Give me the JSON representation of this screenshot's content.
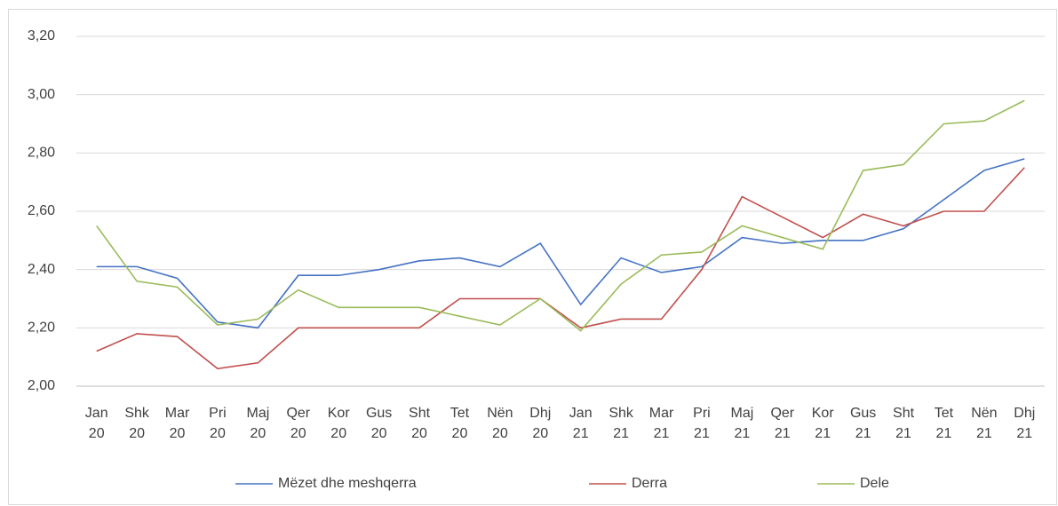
{
  "chart_data": {
    "type": "line",
    "categories": [
      "Jan 20",
      "Shk 20",
      "Mar 20",
      "Pri 20",
      "Maj 20",
      "Qer 20",
      "Kor 20",
      "Gus 20",
      "Sht 20",
      "Tet 20",
      "Nën 20",
      "Dhj 20",
      "Jan 21",
      "Shk 21",
      "Mar 21",
      "Pri 21",
      "Maj 21",
      "Qer 21",
      "Kor 21",
      "Gus 21",
      "Sht 21",
      "Tet 21",
      "Nën 21",
      "Dhj 21"
    ],
    "series": [
      {
        "name": "Mëzet dhe meshqerra",
        "color": "#4472c4",
        "values": [
          2.41,
          2.41,
          2.37,
          2.22,
          2.2,
          2.38,
          2.38,
          2.4,
          2.43,
          2.44,
          2.41,
          2.49,
          2.28,
          2.44,
          2.39,
          2.41,
          2.51,
          2.49,
          2.5,
          2.5,
          2.54,
          2.64,
          2.74,
          2.78
        ]
      },
      {
        "name": "Derra",
        "color": "#c0504d",
        "values": [
          2.12,
          2.18,
          2.17,
          2.06,
          2.08,
          2.2,
          2.2,
          2.2,
          2.2,
          2.3,
          2.3,
          2.3,
          2.2,
          2.23,
          2.23,
          2.4,
          2.65,
          2.58,
          2.51,
          2.59,
          2.55,
          2.6,
          2.6,
          2.75
        ]
      },
      {
        "name": "Dele",
        "color": "#9bbb59",
        "values": [
          2.55,
          2.36,
          2.34,
          2.21,
          2.23,
          2.33,
          2.27,
          2.27,
          2.27,
          2.24,
          2.21,
          2.3,
          2.19,
          2.35,
          2.45,
          2.46,
          2.55,
          2.51,
          2.47,
          2.74,
          2.76,
          2.9,
          2.91,
          2.98
        ]
      }
    ],
    "ylim": [
      2.0,
      3.2
    ],
    "yticks": [
      {
        "value": 2.0,
        "label": "2,00"
      },
      {
        "value": 2.2,
        "label": "2,20"
      },
      {
        "value": 2.4,
        "label": "2,40"
      },
      {
        "value": 2.6,
        "label": "2,60"
      },
      {
        "value": 2.8,
        "label": "2,80"
      },
      {
        "value": 3.0,
        "label": "3,00"
      },
      {
        "value": 3.2,
        "label": "3,20"
      }
    ],
    "grid": true,
    "legend": "bottom"
  }
}
